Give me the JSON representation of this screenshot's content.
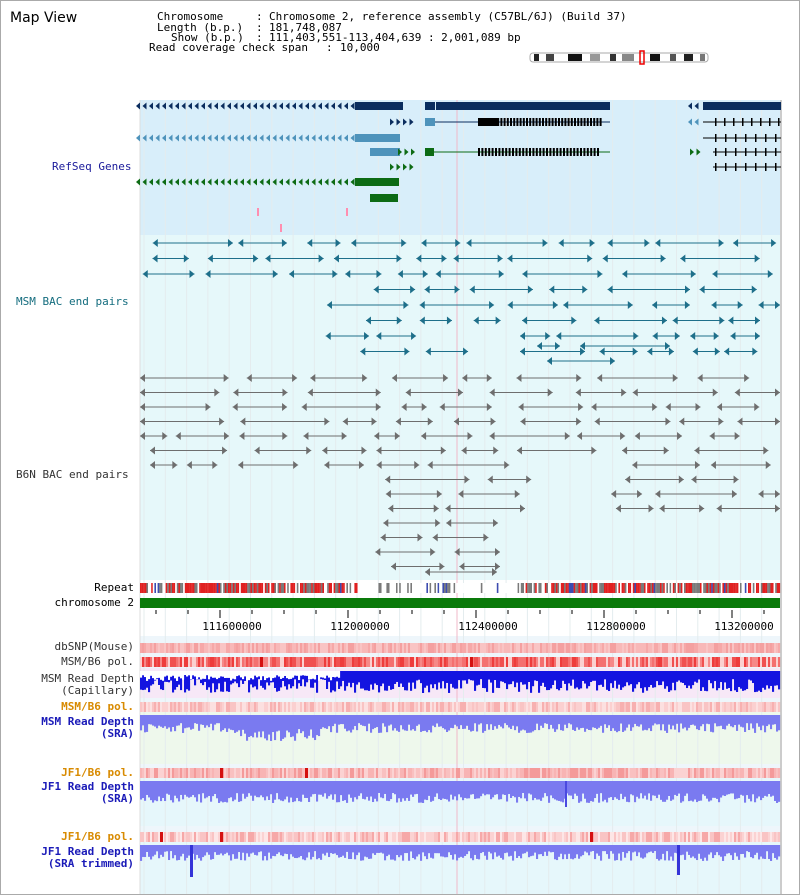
{
  "title": "Map View",
  "header": {
    "chromosome_key": "Chromosome",
    "chromosome_val": "Chromosome 2, reference assembly (C57BL/6J) (Build 37)",
    "length_key": "Length (b.p.)",
    "length_val": "181,748,087",
    "show_key": "Show (b.p.)",
    "show_val": "111,403,551-113,404,639 : 2,001,089 bp",
    "coverage_key": "Read coverage check span",
    "coverage_val": "10,000"
  },
  "tracks": {
    "refseq": "RefSeq Genes",
    "msm_bac": "MSM BAC end pairs",
    "b6n_bac": "B6N BAC end pairs",
    "repeat": "Repeat",
    "chromosome": "chromosome 2",
    "dbsnp": "dbSNP(Mouse)",
    "msm_b6_pol": "MSM/B6 pol.",
    "msm_depth_cap_1": "MSM Read Depth",
    "msm_depth_cap_2": "(Capillary)",
    "msm_b6_pol_2": "MSM/B6 pol.",
    "msm_depth_sra_1": "MSM Read Depth",
    "msm_depth_sra_2": "(SRA)",
    "jf1_b6_pol": "JF1/B6 pol.",
    "jf1_depth_sra_1": "JF1 Read Depth",
    "jf1_depth_sra_2": "(SRA)",
    "jf1_b6_pol_2": "JF1/B6 pol.",
    "jf1_depth_trim_1": "JF1 Read Depth",
    "jf1_depth_trim_2": "(SRA trimmed)"
  },
  "axis": {
    "ticks": [
      "111600000",
      "112000000",
      "112400000",
      "112800000",
      "113200000"
    ]
  },
  "colors": {
    "refseq_bg": "#d8eefa",
    "bac_bg": "#e6f8fa",
    "gene_dark": "#0b2d5e",
    "gene_mid": "#4e93bb",
    "gene_green": "#0d6b14",
    "msm_pair": "#1e6f8a",
    "b6n_pair": "#6e6e6e",
    "chromosome": "#0a7a0a",
    "depth_capillary": "#1414e0",
    "depth_sra": "#7a7af0",
    "cap_bg": "#f7e8f7",
    "sra_bg": "#eef8ec"
  }
}
